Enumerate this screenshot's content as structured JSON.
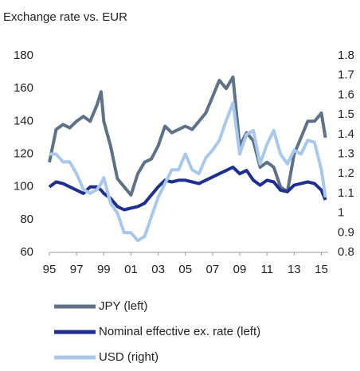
{
  "chart_data": {
    "type": "line",
    "title": "Exchange rate vs. EUR",
    "x": [
      1995,
      1995.5,
      1996,
      1996.5,
      1997,
      1997.5,
      1998,
      1998.5,
      1998.8,
      1999,
      1999.5,
      2000,
      2000.5,
      2001,
      2001.5,
      2002,
      2002.5,
      2003,
      2003.5,
      2004,
      2004.5,
      2005,
      2005.5,
      2006,
      2006.5,
      2007,
      2007.5,
      2008,
      2008.5,
      2009,
      2009.5,
      2010,
      2010.5,
      2011,
      2011.5,
      2012,
      2012.5,
      2013,
      2013.5,
      2014,
      2014.5,
      2015,
      2015.3
    ],
    "series": [
      {
        "name": "JPY (left)",
        "color": "#5f7285",
        "values": [
          115,
          135,
          138,
          136,
          140,
          143,
          140,
          150,
          158,
          140,
          125,
          105,
          100,
          95,
          108,
          115,
          117,
          125,
          137,
          133,
          135,
          137,
          135,
          140,
          145,
          155,
          165,
          160,
          167,
          125,
          133,
          128,
          112,
          115,
          112,
          100,
          97,
          120,
          130,
          140,
          140,
          145,
          130
        ]
      },
      {
        "name": "Nominal effective ex. rate (left)",
        "color": "#1f2f8f",
        "values": [
          100,
          103,
          102,
          100,
          98,
          96,
          100,
          100,
          98,
          96,
          93,
          88,
          86,
          87,
          88,
          90,
          95,
          100,
          104,
          103,
          104,
          104,
          103,
          102,
          104,
          106,
          108,
          110,
          112,
          108,
          110,
          104,
          101,
          104,
          103,
          98,
          97,
          101,
          102,
          103,
          102,
          98,
          92
        ]
      },
      {
        "name": "USD (right)",
        "color": "#a9c8ea",
        "axis": "y2",
        "values": [
          1.3,
          1.3,
          1.26,
          1.26,
          1.2,
          1.12,
          1.1,
          1.12,
          1.15,
          1.18,
          1.05,
          1.0,
          0.9,
          0.9,
          0.86,
          0.88,
          0.98,
          1.08,
          1.15,
          1.22,
          1.22,
          1.3,
          1.22,
          1.2,
          1.28,
          1.32,
          1.37,
          1.47,
          1.56,
          1.3,
          1.4,
          1.42,
          1.25,
          1.35,
          1.42,
          1.3,
          1.25,
          1.32,
          1.3,
          1.37,
          1.36,
          1.22,
          1.08
        ]
      }
    ],
    "xlim": [
      1995,
      2015.5
    ],
    "xticks": [
      {
        "value": 1995,
        "label": "95"
      },
      {
        "value": 1997,
        "label": "97"
      },
      {
        "value": 1999,
        "label": "99"
      },
      {
        "value": 2001,
        "label": "01"
      },
      {
        "value": 2003,
        "label": "03"
      },
      {
        "value": 2005,
        "label": "05"
      },
      {
        "value": 2007,
        "label": "07"
      },
      {
        "value": 2009,
        "label": "09"
      },
      {
        "value": 2011,
        "label": "11"
      },
      {
        "value": 2013,
        "label": "13"
      },
      {
        "value": 2015,
        "label": "15"
      }
    ],
    "ylim": [
      60,
      180
    ],
    "yticks": [
      60,
      80,
      100,
      120,
      140,
      160,
      180
    ],
    "y2lim": [
      0.8,
      1.8
    ],
    "y2ticks": [
      0.8,
      0.9,
      1,
      1.1,
      1.2,
      1.3,
      1.4,
      1.5,
      1.6,
      1.7,
      1.8
    ]
  }
}
